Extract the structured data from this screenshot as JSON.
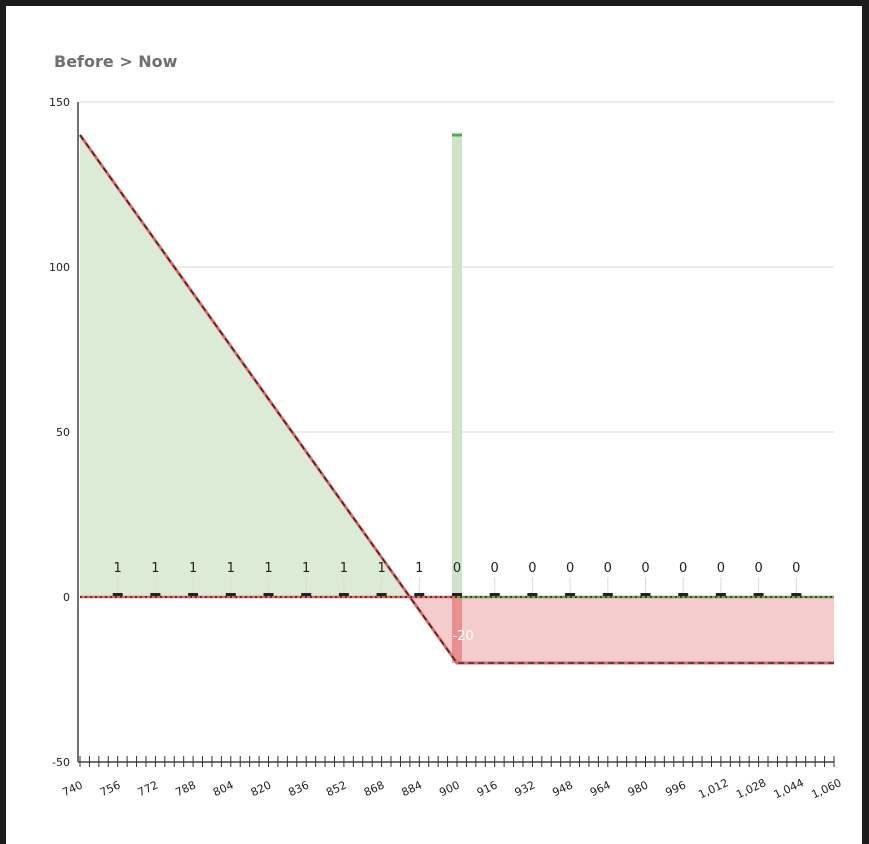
{
  "title": "Before > Now",
  "colors": {
    "profit_fill": "#dcebd6",
    "loss_fill": "#f5cccc",
    "profit_line": "#6aa84f",
    "loss_line": "#e06666",
    "spike": "#cfe3c8",
    "spike_top": "#4caf50",
    "grid": "#d9d9d9"
  },
  "chart_data": {
    "type": "line",
    "title": "Before > Now",
    "xlabel": "",
    "ylabel": "",
    "xlim": [
      740,
      1060
    ],
    "ylim": [
      -50,
      150
    ],
    "grid": true,
    "y_ticks": [
      -50,
      0,
      50,
      100,
      150
    ],
    "x_tick_labels": [
      "740",
      "756",
      "772",
      "788",
      "804",
      "820",
      "836",
      "852",
      "868",
      "884",
      "900",
      "916",
      "932",
      "948",
      "964",
      "980",
      "996",
      "1,012",
      "1,028",
      "1,044",
      "1,060"
    ],
    "x_tick_values": [
      740,
      756,
      772,
      788,
      804,
      820,
      836,
      852,
      868,
      884,
      900,
      916,
      932,
      948,
      964,
      980,
      996,
      1012,
      1028,
      1044,
      1060
    ],
    "series": [
      {
        "values_x": [
          740,
          900,
          1060
        ],
        "values_y": [
          140,
          -20,
          -20
        ]
      }
    ],
    "spike": {
      "x": 900,
      "y": 140
    },
    "annotations": [
      {
        "x": 900,
        "y": -20,
        "text": "-20"
      }
    ],
    "counts": [
      {
        "x": 756,
        "value": "1"
      },
      {
        "x": 772,
        "value": "1"
      },
      {
        "x": 788,
        "value": "1"
      },
      {
        "x": 804,
        "value": "1"
      },
      {
        "x": 820,
        "value": "1"
      },
      {
        "x": 836,
        "value": "1"
      },
      {
        "x": 852,
        "value": "1"
      },
      {
        "x": 868,
        "value": "1"
      },
      {
        "x": 884,
        "value": "1"
      },
      {
        "x": 900,
        "value": "0"
      },
      {
        "x": 916,
        "value": "0"
      },
      {
        "x": 932,
        "value": "0"
      },
      {
        "x": 948,
        "value": "0"
      },
      {
        "x": 964,
        "value": "0"
      },
      {
        "x": 980,
        "value": "0"
      },
      {
        "x": 996,
        "value": "0"
      },
      {
        "x": 1012,
        "value": "0"
      },
      {
        "x": 1028,
        "value": "0"
      },
      {
        "x": 1044,
        "value": "0"
      }
    ]
  }
}
